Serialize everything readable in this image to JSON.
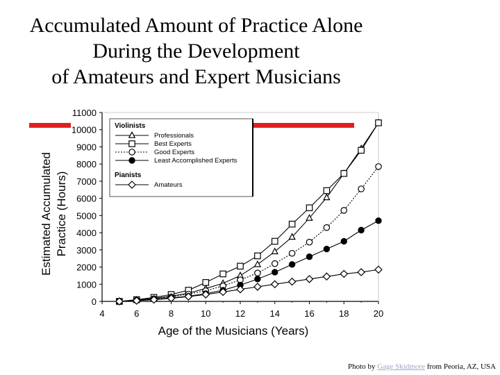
{
  "title_lines": [
    "Accumulated Amount of Practice Alone",
    "During the Development",
    "of Amateurs and Expert Musicians"
  ],
  "colors": {
    "highlight_bar": "#e02020",
    "ink": "#000000",
    "link": "#a0a8c0"
  },
  "credit": {
    "prefix": "Photo by ",
    "author": "Gage Skidmore",
    "suffix": " from Peoria, AZ, USA"
  },
  "chart_data": {
    "type": "line",
    "xlabel": "Age of the Musicians (Years)",
    "ylabel": "Estimated Accumulated Practice (Hours)",
    "xlim": [
      4,
      20
    ],
    "ylim": [
      0,
      11000
    ],
    "xticks": [
      4,
      6,
      8,
      10,
      12,
      14,
      16,
      18,
      20
    ],
    "yticks": [
      0,
      1000,
      2000,
      3000,
      4000,
      5000,
      6000,
      7000,
      8000,
      9000,
      10000,
      11000
    ],
    "grid": false,
    "legend_position": "top-left",
    "legend_groups": [
      {
        "heading": "Violinists",
        "items": [
          "Professionals",
          "Best Experts",
          "Good Experts",
          "Least Accomplished Experts"
        ]
      },
      {
        "heading": "Pianists",
        "items": [
          "Amateurs"
        ]
      }
    ],
    "x": [
      5,
      6,
      7,
      8,
      9,
      10,
      11,
      12,
      13,
      14,
      15,
      16,
      17,
      18,
      19,
      20
    ],
    "series": [
      {
        "name": "Professionals",
        "marker": "triangle",
        "dash": "solid",
        "values": [
          0,
          80,
          180,
          300,
          480,
          750,
          1050,
          1500,
          2150,
          2900,
          3750,
          4850,
          6050,
          7450,
          8900,
          10400
        ]
      },
      {
        "name": "Best Experts",
        "marker": "square",
        "dash": "solid",
        "values": [
          0,
          100,
          230,
          400,
          650,
          1100,
          1600,
          2050,
          2650,
          3500,
          4500,
          5450,
          6450,
          7450,
          8800,
          10400
        ]
      },
      {
        "name": "Good Experts",
        "marker": "circle-open",
        "dash": "dotted",
        "values": [
          0,
          70,
          150,
          260,
          420,
          620,
          900,
          1250,
          1650,
          2200,
          2800,
          3450,
          4300,
          5300,
          6550,
          7850
        ]
      },
      {
        "name": "Least Accomplished Experts",
        "marker": "circle-filled",
        "dash": "solid",
        "values": [
          0,
          50,
          120,
          200,
          300,
          450,
          650,
          950,
          1300,
          1700,
          2150,
          2600,
          3050,
          3500,
          4150,
          4700
        ]
      },
      {
        "name": "Amateurs",
        "marker": "diamond",
        "dash": "solid",
        "values": [
          0,
          40,
          100,
          180,
          280,
          400,
          550,
          700,
          850,
          1000,
          1150,
          1300,
          1450,
          1600,
          1700,
          1850
        ]
      }
    ]
  }
}
